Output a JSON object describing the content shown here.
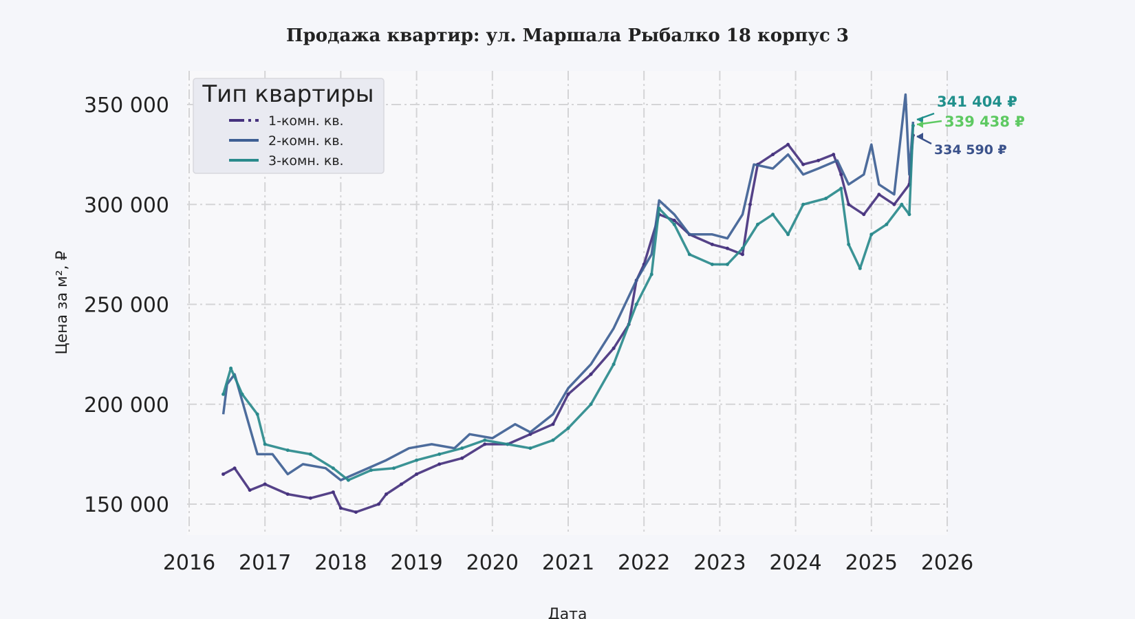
{
  "chart_data": {
    "type": "line",
    "title": "Продажа квартир: ул. Маршала Рыбалко 18 корпус 3",
    "xlabel": "Дата",
    "ylabel": "Цена за м², ₽",
    "xlim": [
      2016,
      2026
    ],
    "ylim": [
      135000,
      367000
    ],
    "x_ticks": [
      "2016",
      "2017",
      "2018",
      "2019",
      "2020",
      "2021",
      "2022",
      "2023",
      "2024",
      "2025",
      "2026"
    ],
    "y_ticks": [
      {
        "value": 150000,
        "label": "150 000"
      },
      {
        "value": 200000,
        "label": "200 000"
      },
      {
        "value": 250000,
        "label": "250 000"
      },
      {
        "value": 300000,
        "label": "300 000"
      },
      {
        "value": 350000,
        "label": "350 000"
      }
    ],
    "grid": true,
    "legend": {
      "title": "Тип квартиры",
      "placement": "top-left"
    },
    "series": [
      {
        "name": "1-комн. кв.",
        "color": "#46327e",
        "style": "dash-dot with markers",
        "x": [
          2016.45,
          2016.6,
          2016.8,
          2017.0,
          2017.3,
          2017.6,
          2017.9,
          2018.0,
          2018.2,
          2018.5,
          2018.6,
          2018.8,
          2019.0,
          2019.3,
          2019.6,
          2019.9,
          2020.2,
          2020.5,
          2020.8,
          2021.0,
          2021.3,
          2021.6,
          2021.8,
          2021.9,
          2022.0,
          2022.2,
          2022.4,
          2022.6,
          2022.9,
          2023.1,
          2023.3,
          2023.4,
          2023.5,
          2023.7,
          2023.9,
          2024.1,
          2024.3,
          2024.5,
          2024.6,
          2024.7,
          2024.9,
          2025.1,
          2025.3,
          2025.5,
          2025.55
        ],
        "y": [
          165000,
          168000,
          157000,
          160000,
          155000,
          153000,
          156000,
          148000,
          146000,
          150000,
          155000,
          160000,
          165000,
          170000,
          173000,
          180000,
          180000,
          185000,
          190000,
          205000,
          215000,
          228000,
          240000,
          262000,
          270000,
          295000,
          292000,
          285000,
          280000,
          278000,
          275000,
          300000,
          320000,
          325000,
          330000,
          320000,
          322000,
          325000,
          315000,
          300000,
          295000,
          305000,
          300000,
          310000,
          334590
        ]
      },
      {
        "name": "2-комн. кв.",
        "color": "#3e5f94",
        "style": "solid",
        "x": [
          2016.45,
          2016.5,
          2016.6,
          2016.75,
          2016.9,
          2017.1,
          2017.3,
          2017.5,
          2017.8,
          2018.0,
          2018.3,
          2018.6,
          2018.9,
          2019.2,
          2019.5,
          2019.7,
          2020.0,
          2020.3,
          2020.5,
          2020.8,
          2021.0,
          2021.3,
          2021.6,
          2021.9,
          2022.1,
          2022.2,
          2022.4,
          2022.6,
          2022.9,
          2023.1,
          2023.3,
          2023.45,
          2023.7,
          2023.9,
          2024.1,
          2024.3,
          2024.55,
          2024.7,
          2024.9,
          2025.0,
          2025.1,
          2025.3,
          2025.45,
          2025.5,
          2025.55
        ],
        "y": [
          195000,
          210000,
          215000,
          195000,
          175000,
          175000,
          165000,
          170000,
          168000,
          162000,
          167000,
          172000,
          178000,
          180000,
          178000,
          185000,
          183000,
          190000,
          186000,
          195000,
          208000,
          220000,
          238000,
          262000,
          275000,
          302000,
          295000,
          285000,
          285000,
          283000,
          295000,
          320000,
          318000,
          325000,
          315000,
          318000,
          322000,
          310000,
          315000,
          330000,
          310000,
          305000,
          355000,
          315000,
          341404
        ]
      },
      {
        "name": "3-комн. кв.",
        "color": "#2a8a8c",
        "style": "solid with markers",
        "x": [
          2016.45,
          2016.55,
          2016.7,
          2016.9,
          2017.0,
          2017.3,
          2017.6,
          2017.9,
          2018.1,
          2018.4,
          2018.7,
          2019.0,
          2019.3,
          2019.6,
          2019.9,
          2020.2,
          2020.5,
          2020.8,
          2021.0,
          2021.3,
          2021.6,
          2021.9,
          2022.1,
          2022.2,
          2022.4,
          2022.6,
          2022.9,
          2023.1,
          2023.3,
          2023.5,
          2023.7,
          2023.9,
          2024.1,
          2024.4,
          2024.6,
          2024.7,
          2024.85,
          2025.0,
          2025.2,
          2025.4,
          2025.5,
          2025.55
        ],
        "y": [
          205000,
          218000,
          205000,
          195000,
          180000,
          177000,
          175000,
          168000,
          162000,
          167000,
          168000,
          172000,
          175000,
          178000,
          182000,
          180000,
          178000,
          182000,
          188000,
          200000,
          220000,
          250000,
          265000,
          298000,
          290000,
          275000,
          270000,
          270000,
          278000,
          290000,
          295000,
          285000,
          300000,
          303000,
          308000,
          280000,
          268000,
          285000,
          290000,
          300000,
          295000,
          339438
        ]
      }
    ],
    "annotations": [
      {
        "text": "341 404 ₽",
        "color": "#21908c",
        "value": 341404
      },
      {
        "text": "339 438 ₽",
        "color": "#5ec962",
        "value": 339438
      },
      {
        "text": "334 590 ₽",
        "color": "#3b528b",
        "value": 334590
      }
    ]
  }
}
